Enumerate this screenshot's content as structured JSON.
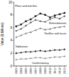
{
  "chart_data": {
    "type": "line",
    "y_label": "Value ($ billions)",
    "x": [
      2003,
      2004,
      2005,
      2006,
      2007,
      2008,
      2009,
      2010,
      2011,
      2012,
      2013
    ],
    "xlim": [
      2002.5,
      2013.5
    ],
    "xticks": [
      2003,
      2004,
      2005,
      2006,
      2007,
      2008,
      2009,
      2010,
      2011,
      2012,
      2013
    ],
    "ylim": [
      0,
      10
    ],
    "yticks": [
      0,
      2,
      4,
      6,
      8,
      10
    ],
    "grid": false,
    "series": [
      {
        "name": "Flour and wet bits",
        "color": "#000000",
        "marker": "square",
        "values": [
          6.2,
          6.5,
          7.0,
          7.3,
          7.8,
          8.2,
          8.0,
          7.6,
          7.9,
          8.1,
          8.3
        ]
      },
      {
        "name": "Refreshments",
        "color": "#555555",
        "marker": "circle",
        "values": [
          5.5,
          5.8,
          6.3,
          6.8,
          7.2,
          7.0,
          6.9,
          7.3,
          7.6,
          7.4,
          7.8
        ]
      },
      {
        "name": "Tortillas and tacos",
        "color": "#777777",
        "marker": "triangle",
        "values": [
          4.5,
          4.8,
          5.1,
          5.3,
          5.6,
          5.9,
          5.7,
          5.8,
          6.0,
          6.1,
          6.2
        ]
      },
      {
        "name": "Tableware",
        "color": "#333333",
        "marker": "diamond",
        "values": [
          2.0,
          2.1,
          2.2,
          2.2,
          2.3,
          2.4,
          2.3,
          2.4,
          2.5,
          2.5,
          2.6
        ]
      },
      {
        "name": "Confectionery",
        "color": "#999999",
        "marker": "circle",
        "values": [
          1.0,
          1.1,
          1.1,
          1.2,
          1.3,
          1.3,
          1.2,
          1.3,
          1.4,
          1.4,
          1.5
        ]
      }
    ]
  }
}
